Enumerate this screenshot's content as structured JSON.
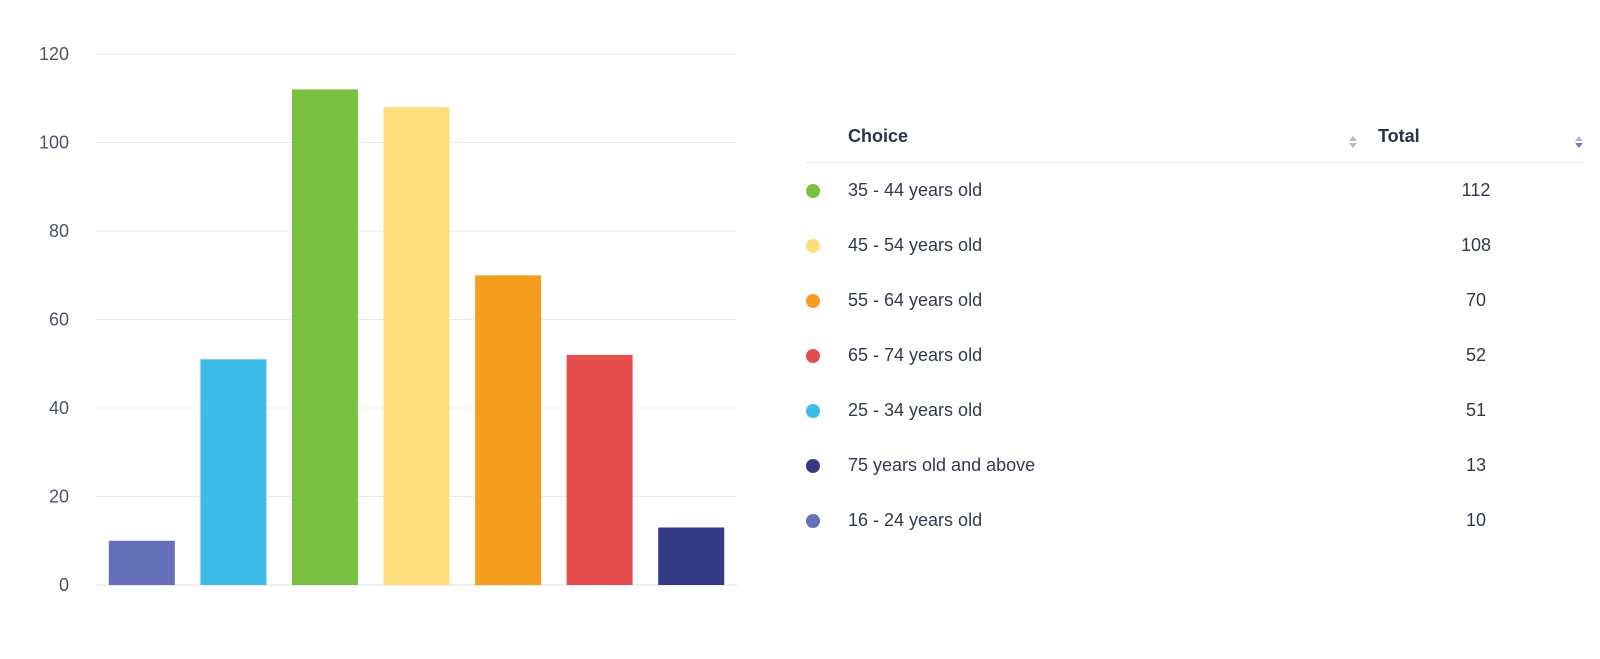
{
  "chart_data": {
    "type": "bar",
    "categories": [
      "16 - 24 years old",
      "25 - 34 years old",
      "35 - 44 years old",
      "45 - 54 years old",
      "55 - 64 years old",
      "65 - 74 years old",
      "75 years old and above"
    ],
    "values": [
      10,
      51,
      112,
      108,
      70,
      52,
      13
    ],
    "colors": [
      "#6670b8",
      "#3cbce6",
      "#7ac143",
      "#fede7a",
      "#f59d21",
      "#e64e4d",
      "#343a86"
    ],
    "ylim": [
      0,
      120
    ],
    "yticks": [
      0,
      20,
      40,
      60,
      80,
      100,
      120
    ],
    "grid": true,
    "title": "",
    "xlabel": "",
    "ylabel": ""
  },
  "table": {
    "headers": {
      "choice": "Choice",
      "total": "Total"
    },
    "rows": [
      {
        "choice": "35 - 44 years old",
        "total": "112",
        "color": "#7ac143"
      },
      {
        "choice": "45 - 54 years old",
        "total": "108",
        "color": "#fede7a"
      },
      {
        "choice": "55 - 64 years old",
        "total": "70",
        "color": "#f59d21"
      },
      {
        "choice": "65 - 74 years old",
        "total": "52",
        "color": "#e64e4d"
      },
      {
        "choice": "25 - 34 years old",
        "total": "51",
        "color": "#3cbce6"
      },
      {
        "choice": "75 years old and above",
        "total": "13",
        "color": "#343a86"
      },
      {
        "choice": "16 - 24 years old",
        "total": "10",
        "color": "#6670b8"
      }
    ]
  }
}
